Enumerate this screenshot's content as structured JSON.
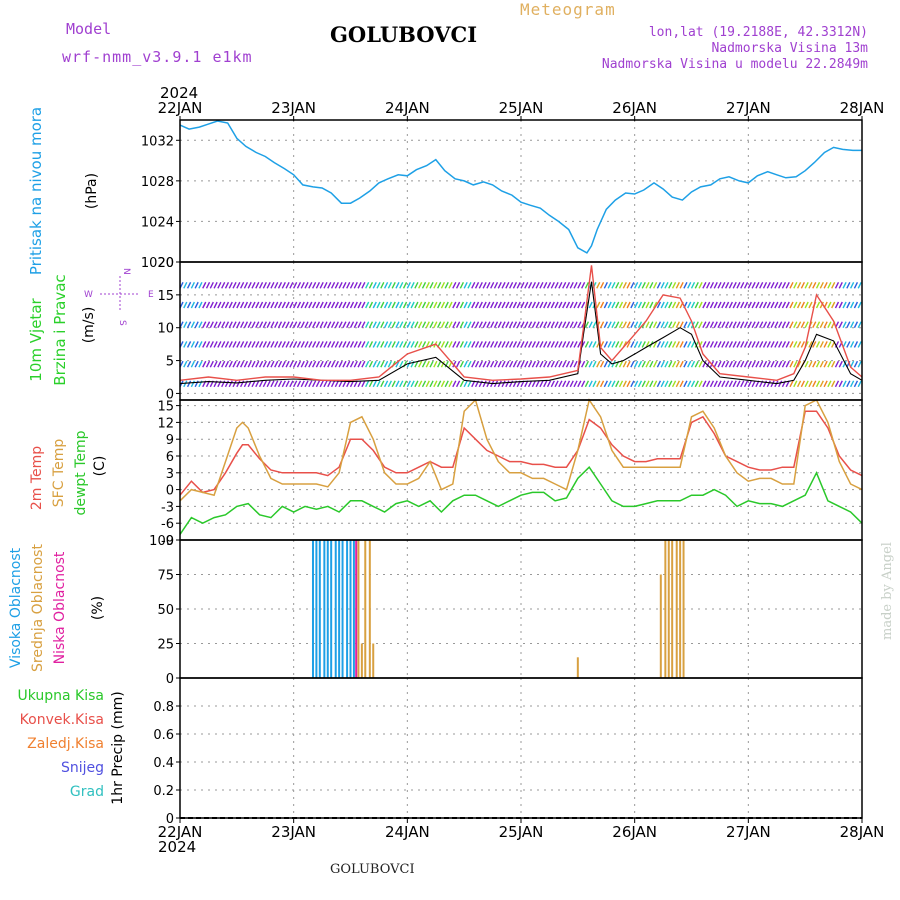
{
  "header": {
    "model_label": "Model",
    "model_name": "wrf-nmm_v3.9.1 e1km",
    "title": "GOLUBOVCI",
    "meteogram_label": "Meteogram",
    "lonlat": "lon,lat (19.2188E, 42.3312N)",
    "elevation": "Nadmorska Visina 13m",
    "model_elevation": "Nadmorska Visina u modelu 22.2849m",
    "footer_title": "GOLUBOVCI",
    "watermark": "made by Angel",
    "year_top": "2024",
    "year_bottom": "2024"
  },
  "colors": {
    "pressure": "#1ea0e6",
    "wind_label": "#2ad02a",
    "temp": "#e8504a",
    "sfc_temp": "#d8a040",
    "dewpoint": "#2ac82a",
    "high_cloud": "#1ea0e6",
    "mid_cloud": "#d8a040",
    "low_cloud": "#e020a0",
    "model_purple": "#a040d0",
    "meteogram_orange": "#e0b060"
  },
  "panel_labels": {
    "pressure": {
      "line1": "Pritisak na nivou mora",
      "unit": "(hPa)"
    },
    "wind": {
      "line1": "10m Vjetar",
      "line2": "Brzina i Pravac",
      "unit": "(m/s)"
    },
    "compass": {
      "n": "N",
      "s": "S",
      "e": "E",
      "w": "W"
    },
    "temp": {
      "t2m": "2m Temp",
      "sfc": "SFC Temp",
      "dew": "dewpt Temp",
      "unit": "(C)"
    },
    "cloud": {
      "high": "Visoka Oblacnost",
      "mid": "Srednja Oblacnost",
      "low": "Niska Oblacnost",
      "unit": "(%)"
    },
    "precip": {
      "items": [
        "Ukupna Kisa",
        "Konvek.Kisa",
        "Zaledj.Kisa",
        "Snijeg",
        "Grad"
      ],
      "item_colors": [
        "#2ac82a",
        "#e8504a",
        "#f08030",
        "#5050e0",
        "#30c0c0"
      ],
      "unit": "1hr Precip (mm)"
    }
  },
  "chart_data": [
    {
      "type": "line",
      "panel": "pressure",
      "xlabels": [
        "22JAN",
        "23JAN",
        "24JAN",
        "25JAN",
        "26JAN",
        "27JAN",
        "28JAN"
      ],
      "ylim": [
        1020,
        1034
      ],
      "yticks": [
        1020,
        1024,
        1028,
        1032
      ],
      "series": [
        {
          "color": "#1ea0e6",
          "x": [
            0,
            0.08,
            0.17,
            0.25,
            0.33,
            0.42,
            0.5,
            0.58,
            0.67,
            0.75,
            0.83,
            0.92,
            1.0,
            1.08,
            1.17,
            1.25,
            1.33,
            1.42,
            1.5,
            1.58,
            1.67,
            1.75,
            1.83,
            1.92,
            2.0,
            2.08,
            2.17,
            2.25,
            2.33,
            2.42,
            2.5,
            2.58,
            2.67,
            2.75,
            2.83,
            2.92,
            3.0,
            3.08,
            3.17,
            3.25,
            3.33,
            3.42,
            3.5,
            3.58,
            3.62,
            3.67,
            3.75,
            3.83,
            3.92,
            4.0,
            4.08,
            4.17,
            4.25,
            4.33,
            4.42,
            4.5,
            4.58,
            4.67,
            4.75,
            4.83,
            4.92,
            5.0,
            5.08,
            5.17,
            5.25,
            5.33,
            5.42,
            5.5,
            5.58,
            5.67,
            5.75,
            5.83,
            5.92,
            6.0
          ],
          "y": [
            1033.5,
            1033.1,
            1033.3,
            1033.6,
            1033.9,
            1033.7,
            1032.2,
            1031.4,
            1030.8,
            1030.4,
            1029.8,
            1029.2,
            1028.6,
            1027.6,
            1027.4,
            1027.3,
            1026.8,
            1025.8,
            1025.8,
            1026.3,
            1027.0,
            1027.8,
            1028.2,
            1028.6,
            1028.5,
            1029.1,
            1029.5,
            1030.1,
            1029.0,
            1028.2,
            1028.0,
            1027.6,
            1027.9,
            1027.6,
            1027.0,
            1026.6,
            1025.9,
            1025.6,
            1025.3,
            1024.6,
            1024.0,
            1023.2,
            1021.4,
            1020.9,
            1021.6,
            1023.2,
            1025.2,
            1026.1,
            1026.8,
            1026.7,
            1027.1,
            1027.8,
            1027.2,
            1026.4,
            1026.1,
            1026.9,
            1027.4,
            1027.6,
            1028.2,
            1028.4,
            1028.0,
            1027.8,
            1028.5,
            1028.9,
            1028.6,
            1028.3,
            1028.4,
            1029.0,
            1029.8,
            1030.8,
            1031.3,
            1031.1,
            1031.0,
            1031.0
          ]
        }
      ]
    },
    {
      "type": "line",
      "panel": "wind",
      "ylim": [
        -1,
        20
      ],
      "yticks": [
        0,
        5,
        10,
        15,
        20
      ],
      "series": [
        {
          "name": "speed",
          "color": "#000000",
          "x": [
            0,
            0.25,
            0.5,
            0.75,
            1.0,
            1.25,
            1.5,
            1.75,
            2.0,
            2.25,
            2.5,
            2.75,
            3.0,
            3.25,
            3.5,
            3.55,
            3.62,
            3.7,
            3.8,
            3.9,
            4.0,
            4.1,
            4.25,
            4.4,
            4.5,
            4.6,
            4.75,
            5.0,
            5.25,
            5.4,
            5.5,
            5.6,
            5.75,
            5.9,
            6.0
          ],
          "y": [
            1.5,
            1.8,
            1.6,
            2.0,
            2.2,
            2.0,
            1.8,
            2.0,
            4.5,
            5.5,
            2.0,
            1.5,
            1.8,
            2.0,
            3.0,
            9.0,
            17.0,
            6.0,
            4.5,
            5.0,
            6.0,
            7.0,
            8.5,
            10.0,
            9.0,
            5.0,
            2.5,
            2.0,
            1.5,
            2.0,
            5.0,
            9.0,
            8.0,
            3.0,
            2.0
          ]
        },
        {
          "name": "gust",
          "color": "#e8504a",
          "x": [
            0,
            0.25,
            0.5,
            0.75,
            1.0,
            1.25,
            1.5,
            1.75,
            2.0,
            2.25,
            2.5,
            2.75,
            3.0,
            3.25,
            3.5,
            3.55,
            3.62,
            3.7,
            3.8,
            3.9,
            4.0,
            4.1,
            4.25,
            4.4,
            4.5,
            4.6,
            4.75,
            5.0,
            5.25,
            5.4,
            5.5,
            5.6,
            5.75,
            5.9,
            6.0
          ],
          "y": [
            2.0,
            2.5,
            2.0,
            2.5,
            2.5,
            2.0,
            2.0,
            2.5,
            6.0,
            7.5,
            2.5,
            2.0,
            2.2,
            2.5,
            3.5,
            10.0,
            19.5,
            7.0,
            5.0,
            7.0,
            9.0,
            11.0,
            15.0,
            14.5,
            11.0,
            6.0,
            3.0,
            2.5,
            2.0,
            3.0,
            7.0,
            15.0,
            11.0,
            4.0,
            2.5
          ]
        }
      ]
    },
    {
      "type": "line",
      "panel": "temperature",
      "ylim": [
        -9,
        16
      ],
      "yticks": [
        -9,
        -6,
        -3,
        0,
        3,
        6,
        9,
        12,
        15
      ],
      "series": [
        {
          "name": "2m Temp",
          "color": "#e8504a",
          "x": [
            0,
            0.1,
            0.2,
            0.3,
            0.4,
            0.5,
            0.55,
            0.6,
            0.7,
            0.8,
            0.9,
            1.0,
            1.1,
            1.2,
            1.3,
            1.4,
            1.5,
            1.6,
            1.7,
            1.8,
            1.9,
            2.0,
            2.1,
            2.2,
            2.3,
            2.4,
            2.5,
            2.6,
            2.7,
            2.8,
            2.9,
            3.0,
            3.1,
            3.2,
            3.3,
            3.4,
            3.5,
            3.6,
            3.7,
            3.8,
            3.9,
            4.0,
            4.1,
            4.2,
            4.3,
            4.4,
            4.5,
            4.6,
            4.7,
            4.8,
            4.9,
            5.0,
            5.1,
            5.2,
            5.3,
            5.4,
            5.5,
            5.6,
            5.7,
            5.8,
            5.9,
            6.0
          ],
          "y": [
            -1,
            1.5,
            -0.5,
            0,
            3,
            6.5,
            8,
            8,
            5.5,
            3.5,
            3,
            3,
            3,
            3,
            2.5,
            4,
            9,
            9,
            7,
            4,
            3,
            3,
            4,
            5,
            4,
            4,
            11,
            9,
            7,
            6,
            5,
            5,
            4.5,
            4.5,
            4,
            4,
            7,
            12.5,
            11,
            8,
            6,
            5,
            5,
            5.5,
            5.5,
            5.5,
            12,
            13,
            10,
            6,
            5,
            4,
            3.5,
            3.5,
            4,
            4,
            14,
            14,
            11,
            6,
            3.5,
            2.5
          ]
        },
        {
          "name": "SFC Temp",
          "color": "#d8a040",
          "x": [
            0,
            0.1,
            0.2,
            0.3,
            0.4,
            0.5,
            0.55,
            0.6,
            0.7,
            0.8,
            0.9,
            1.0,
            1.1,
            1.2,
            1.3,
            1.4,
            1.5,
            1.6,
            1.7,
            1.8,
            1.9,
            2.0,
            2.1,
            2.2,
            2.3,
            2.4,
            2.5,
            2.6,
            2.7,
            2.8,
            2.9,
            3.0,
            3.1,
            3.2,
            3.3,
            3.4,
            3.5,
            3.6,
            3.7,
            3.8,
            3.9,
            4.0,
            4.1,
            4.2,
            4.3,
            4.4,
            4.5,
            4.6,
            4.7,
            4.8,
            4.9,
            5.0,
            5.1,
            5.2,
            5.3,
            5.4,
            5.5,
            5.6,
            5.7,
            5.8,
            5.9,
            6.0
          ],
          "y": [
            -2,
            0,
            -0.5,
            -1,
            5,
            11,
            12,
            11,
            6,
            2,
            1,
            1,
            1,
            1,
            0.5,
            3,
            12,
            13,
            9,
            3,
            1,
            1,
            2,
            5,
            0,
            1,
            14,
            16,
            9,
            5,
            3,
            3,
            2,
            2,
            1,
            0,
            7,
            16,
            13,
            7,
            4,
            4,
            4,
            4,
            4,
            4,
            13,
            14,
            11,
            6,
            3,
            1.5,
            2,
            2,
            1,
            1,
            15,
            16,
            12,
            5,
            1,
            0
          ]
        },
        {
          "name": "dewpt Temp",
          "color": "#2ac82a",
          "x": [
            0,
            0.1,
            0.2,
            0.3,
            0.4,
            0.5,
            0.6,
            0.7,
            0.8,
            0.9,
            1.0,
            1.1,
            1.2,
            1.3,
            1.4,
            1.5,
            1.6,
            1.7,
            1.8,
            1.9,
            2.0,
            2.1,
            2.2,
            2.3,
            2.4,
            2.5,
            2.6,
            2.7,
            2.8,
            2.9,
            3.0,
            3.1,
            3.2,
            3.3,
            3.4,
            3.5,
            3.6,
            3.7,
            3.8,
            3.9,
            4.0,
            4.1,
            4.2,
            4.3,
            4.4,
            4.5,
            4.6,
            4.7,
            4.8,
            4.9,
            5.0,
            5.1,
            5.2,
            5.3,
            5.4,
            5.5,
            5.6,
            5.7,
            5.8,
            5.9,
            6.0
          ],
          "y": [
            -8,
            -5,
            -6,
            -5,
            -4.5,
            -3,
            -2.5,
            -4.5,
            -5,
            -3,
            -4,
            -3,
            -3.5,
            -3,
            -4,
            -2,
            -2,
            -3,
            -4,
            -2.5,
            -2,
            -3,
            -2,
            -4,
            -2,
            -1,
            -1,
            -2,
            -3,
            -2,
            -1,
            -0.5,
            -0.5,
            -2,
            -1.5,
            2,
            4,
            1,
            -2,
            -3,
            -3,
            -2.5,
            -2,
            -2,
            -2,
            -1,
            -1,
            0,
            -1,
            -3,
            -2,
            -2.5,
            -2.5,
            -3,
            -2,
            -1,
            3,
            -2,
            -3,
            -4,
            -6
          ]
        }
      ]
    },
    {
      "type": "bar",
      "panel": "cloud",
      "ylim": [
        0,
        100
      ],
      "yticks": [
        0,
        25,
        50,
        75,
        100
      ],
      "series": [
        {
          "name": "Visoka Oblacnost",
          "color": "#1ea0e6",
          "x": [
            1.17,
            1.2,
            1.23,
            1.27,
            1.3,
            1.33,
            1.37,
            1.4,
            1.43,
            1.47,
            1.5,
            1.53
          ],
          "values": [
            100,
            100,
            100,
            100,
            100,
            100,
            100,
            100,
            100,
            100,
            100,
            100
          ]
        },
        {
          "name": "Srednja Oblacnost",
          "color": "#d8a040",
          "x": [
            1.57,
            1.6,
            1.63,
            1.67,
            1.7,
            3.5,
            4.23,
            4.27,
            4.3,
            4.33,
            4.37,
            4.4,
            4.43
          ],
          "values": [
            100,
            25,
            100,
            100,
            25,
            15,
            75,
            100,
            100,
            100,
            100,
            100,
            100
          ]
        },
        {
          "name": "Niska Oblacnost",
          "color": "#e020a0",
          "x": [
            1.55
          ],
          "values": [
            100
          ]
        }
      ]
    },
    {
      "type": "bar",
      "panel": "precip",
      "xlabels": [
        "22JAN",
        "23JAN",
        "24JAN",
        "25JAN",
        "26JAN",
        "27JAN",
        "28JAN"
      ],
      "ylim": [
        0,
        1.0
      ],
      "yticks": [
        "0",
        "0.2",
        "0.4",
        "0.6",
        "0.8"
      ],
      "series": [
        {
          "name": "Ukupna Kisa",
          "values": []
        }
      ]
    }
  ]
}
